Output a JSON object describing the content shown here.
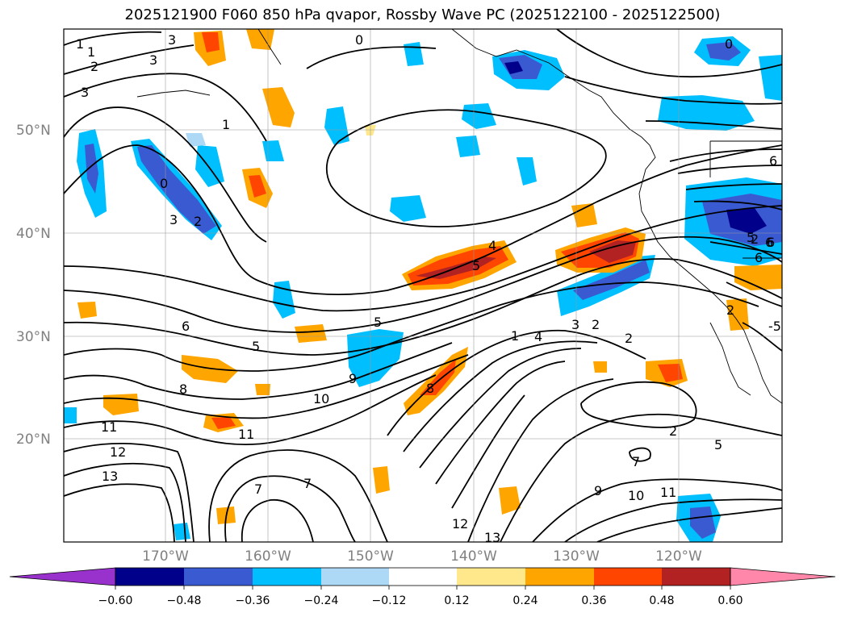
{
  "title": "2025121900 F060 850 hPa qvapor, Rossby Wave PC (2025122100 - 2025122500)",
  "lat_labels": [
    "50°N",
    "40°N",
    "30°N",
    "20°N"
  ],
  "lon_labels": [
    "170°W",
    "160°W",
    "150°W",
    "140°W",
    "130°W",
    "120°W"
  ],
  "colorbar": {
    "ticks": [
      "−0.60",
      "−0.48",
      "−0.36",
      "−0.24",
      "−0.12",
      "0.12",
      "0.24",
      "0.36",
      "0.48",
      "0.60"
    ],
    "colors": [
      "#9932cc",
      "#00008b",
      "#3a5ad2",
      "#00bfff",
      "#add8f6",
      "#ffffff",
      "#ffe88c",
      "#ffa500",
      "#ff4500",
      "#b22222",
      "#ff88aa"
    ]
  },
  "contour_labels": [
    "0",
    "1",
    "2",
    "3",
    "3",
    "3",
    "1",
    "2",
    "0",
    "1",
    "0",
    "3",
    "2",
    "6",
    "5",
    "5",
    "4",
    "5",
    "5",
    "6",
    "9",
    "8",
    "10",
    "11",
    "11",
    "12",
    "13",
    "7",
    "7",
    "8",
    "1",
    "4",
    "3",
    "2",
    "2",
    "2",
    "5",
    "7",
    "9",
    "10",
    "11",
    "12",
    "13",
    "-5",
    "6",
    "6",
    "2",
    "6"
  ]
}
